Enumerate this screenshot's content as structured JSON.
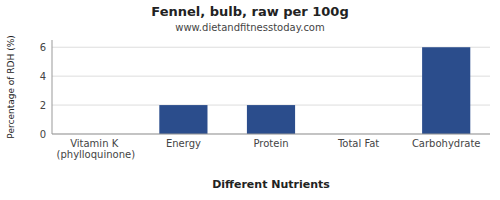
{
  "chart_data": {
    "type": "bar",
    "title": "Fennel, bulb, raw per 100g",
    "subtitle": "www.dietandfitnesstoday.com",
    "xlabel": "Different Nutrients",
    "ylabel": "Percentage of RDH (%)",
    "categories": [
      "Vitamin K (phylloquinone)",
      "Energy",
      "Protein",
      "Total Fat",
      "Carbohydrate"
    ],
    "values": [
      0.0,
      2.0,
      2.0,
      0.0,
      6.0
    ],
    "color": "#2b4d8c",
    "ylim": [
      0,
      6.5
    ],
    "yticks": [
      0,
      2,
      4,
      6
    ],
    "grid": true
  }
}
